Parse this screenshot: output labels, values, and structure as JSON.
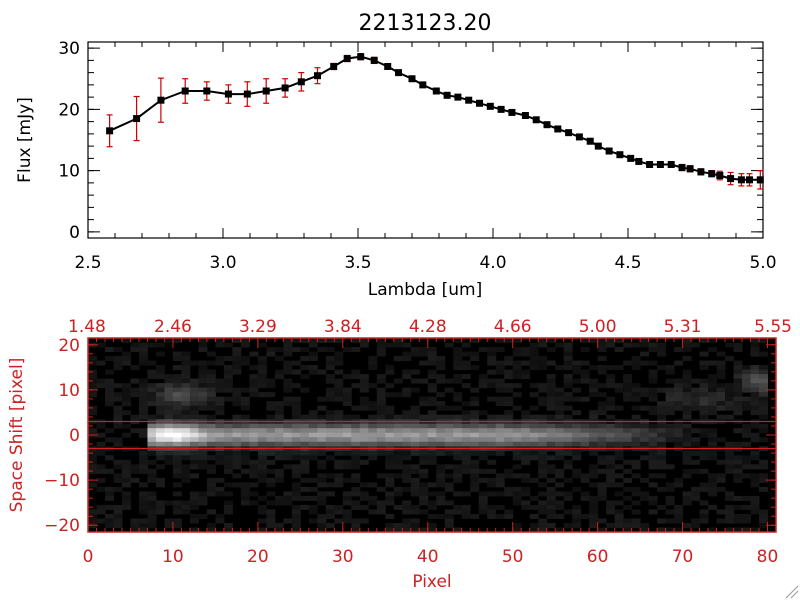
{
  "chart_data": [
    {
      "type": "line",
      "title": "2213123.20",
      "xlabel": "Lambda [um]",
      "ylabel": "Flux [mJy]",
      "xlim": [
        2.5,
        5.0
      ],
      "ylim": [
        -1,
        31
      ],
      "xticks": [
        "2.5",
        "3.0",
        "3.5",
        "4.0",
        "4.5",
        "5.0"
      ],
      "yticks": [
        "0",
        "10",
        "20",
        "30"
      ],
      "grid": false,
      "series": [
        {
          "x": [
            2.58,
            2.68,
            2.77,
            2.86,
            2.94,
            3.02,
            3.09,
            3.16,
            3.23,
            3.29,
            3.35,
            3.41,
            3.46,
            3.51,
            3.56,
            3.61,
            3.65,
            3.7,
            3.74,
            3.79,
            3.83,
            3.87,
            3.91,
            3.95,
            3.99,
            4.03,
            4.07,
            4.12,
            4.16,
            4.2,
            4.24,
            4.28,
            4.32,
            4.36,
            4.39,
            4.43,
            4.47,
            4.51,
            4.54,
            4.58,
            4.62,
            4.66,
            4.7,
            4.73,
            4.77,
            4.81,
            4.84,
            4.88,
            4.92,
            4.95,
            4.99
          ],
          "y": [
            16.5,
            18.5,
            21.5,
            23.0,
            23.0,
            22.5,
            22.5,
            23.0,
            23.5,
            24.5,
            25.5,
            27.0,
            28.3,
            28.6,
            28.0,
            27.0,
            26.0,
            25.0,
            24.0,
            23.0,
            22.3,
            22.0,
            21.5,
            21.0,
            20.5,
            20.0,
            19.5,
            19.0,
            18.3,
            17.5,
            16.8,
            16.2,
            15.5,
            14.8,
            14.0,
            13.2,
            12.6,
            12.0,
            11.5,
            11.0,
            11.0,
            11.0,
            10.5,
            10.3,
            9.8,
            9.5,
            9.2,
            8.7,
            8.5,
            8.5,
            8.5
          ],
          "err": [
            2.6,
            3.6,
            3.6,
            2.0,
            1.5,
            1.5,
            2.0,
            2.0,
            1.5,
            1.5,
            1.3,
            0.5,
            0.5,
            0.5,
            0.5,
            0.4,
            0.4,
            0.4,
            0.4,
            0.4,
            0.4,
            0.4,
            0.4,
            0.4,
            0.4,
            0.4,
            0.4,
            0.4,
            0.4,
            0.4,
            0.4,
            0.4,
            0.4,
            0.4,
            0.4,
            0.4,
            0.4,
            0.4,
            0.4,
            0.4,
            0.4,
            0.4,
            0.5,
            0.5,
            0.5,
            0.5,
            0.7,
            1.0,
            1.0,
            1.0,
            1.5
          ]
        }
      ],
      "colors": {
        "line": "#000000",
        "marker": "#000000",
        "errorbar": "#cc0000"
      }
    },
    {
      "type": "heatmap",
      "xlabel": "Pixel",
      "ylabel": "Space Shift [pixel]",
      "top_xticks": [
        "1.48",
        "2.46",
        "3.29",
        "3.84",
        "4.28",
        "4.66",
        "5.00",
        "5.31",
        "5.55"
      ],
      "xticks": [
        "0",
        "10",
        "20",
        "30",
        "40",
        "50",
        "60",
        "70",
        "80"
      ],
      "yticks": [
        "20",
        "10",
        "0",
        "−10",
        "−20"
      ],
      "xlim": [
        0,
        81
      ],
      "ylim": [
        -21.5,
        21.5
      ],
      "extraction_window": [
        -3,
        3
      ],
      "colors": {
        "axes": "#cc2222",
        "window": "#cc2222",
        "colormap": "gray"
      }
    }
  ]
}
